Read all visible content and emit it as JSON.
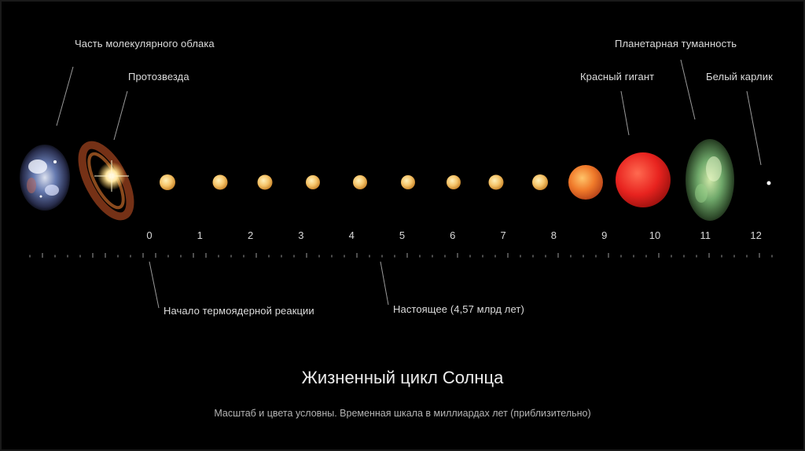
{
  "labels": {
    "molecular_cloud": "Часть молекулярного облака",
    "protostar": "Протозвезда",
    "planetary_nebula": "Планетарная туманность",
    "red_giant": "Красный гигант",
    "white_dwarf": "Белый карлик",
    "fusion_start": "Начало термоядерной реакции",
    "present": "Настоящее (4,57 млрд лет)"
  },
  "timeline": {
    "ticks": [
      "0",
      "1",
      "2",
      "3",
      "4",
      "5",
      "6",
      "7",
      "8",
      "9",
      "10",
      "11",
      "12"
    ]
  },
  "title": "Жизненный цикл Солнца",
  "subtitle": "Масштаб и цвета условны. Временная шкала в миллиардах лет (приблизительно)",
  "colors": {
    "background": "#000000",
    "sun": "#f5c46a",
    "red_giant": "#e8231f",
    "subgiant": "#f07a2a",
    "nebula": "#6fa86a",
    "white_dwarf": "#ffffff"
  }
}
